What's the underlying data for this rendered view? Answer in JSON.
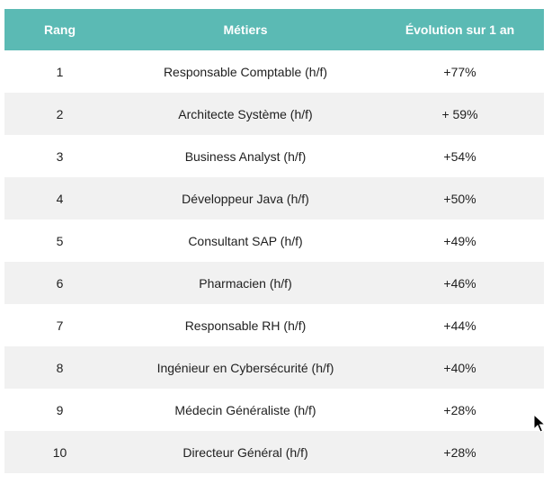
{
  "table": {
    "headers": {
      "rank": "Rang",
      "job": "Métiers",
      "evolution": "Évolution sur 1 an"
    },
    "rows": [
      {
        "rank": "1",
        "job": "Responsable Comptable (h/f)",
        "evolution": "+77%"
      },
      {
        "rank": "2",
        "job": "Architecte Système (h/f)",
        "evolution": "+ 59%"
      },
      {
        "rank": "3",
        "job": "Business Analyst (h/f)",
        "evolution": "+54%"
      },
      {
        "rank": "4",
        "job": "Développeur Java (h/f)",
        "evolution": "+50%"
      },
      {
        "rank": "5",
        "job": "Consultant SAP (h/f)",
        "evolution": "+49%"
      },
      {
        "rank": "6",
        "job": "Pharmacien (h/f)",
        "evolution": "+46%"
      },
      {
        "rank": "7",
        "job": "Responsable RH (h/f)",
        "evolution": "+44%"
      },
      {
        "rank": "8",
        "job": "Ingénieur en Cybersécurité (h/f)",
        "evolution": "+40%"
      },
      {
        "rank": "9",
        "job": "Médecin Généraliste (h/f)",
        "evolution": "+28%"
      },
      {
        "rank": "10",
        "job": "Directeur Général (h/f)",
        "evolution": "+28%"
      }
    ]
  },
  "colors": {
    "header_bg": "#5bbab4",
    "header_text": "#ffffff",
    "alt_row_bg": "#f1f1f1"
  },
  "cursor": {
    "icon": "mouse-pointer-icon"
  }
}
